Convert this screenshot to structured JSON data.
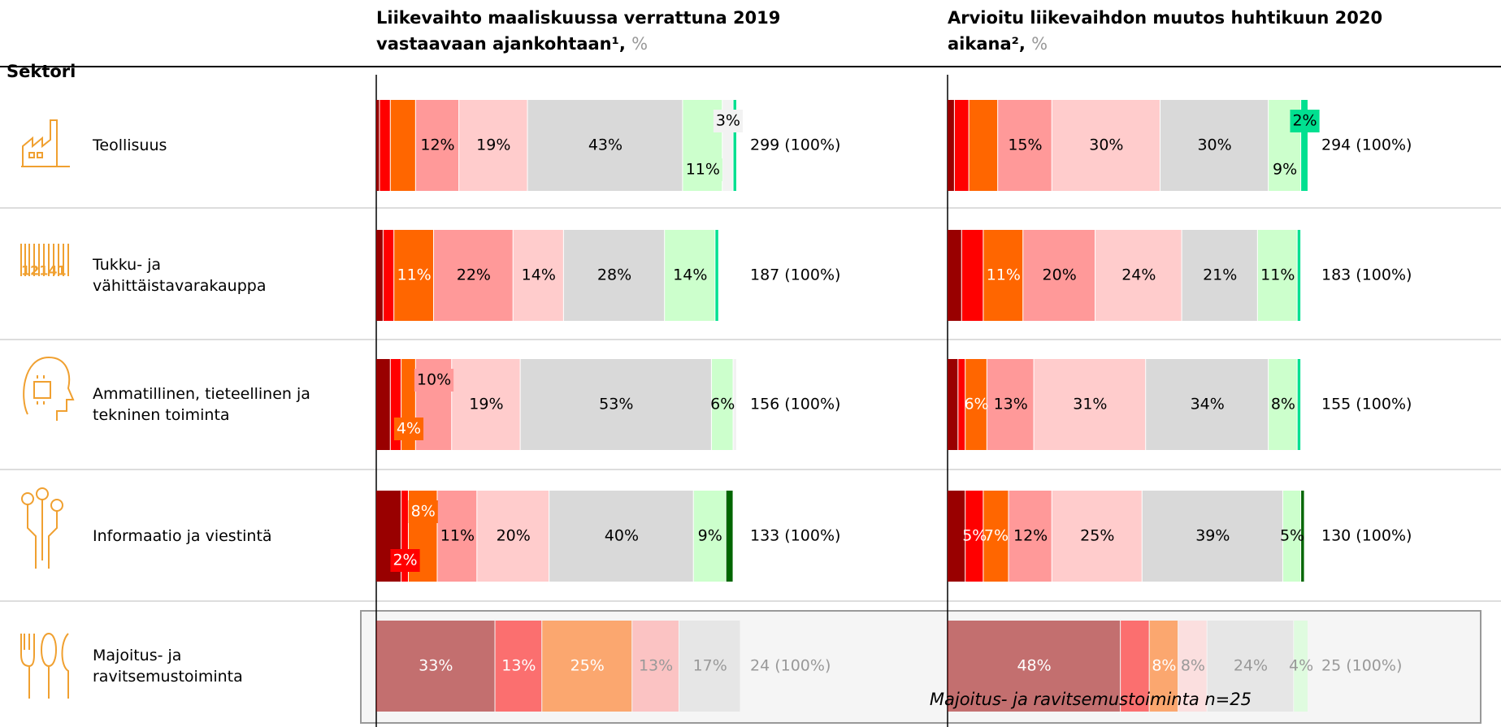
{
  "header": "Sektori",
  "note": "Majoitus- ja ravitsemustoiminta n=25",
  "chart_data": [
    {
      "type": "bar",
      "orientation": "horizontal",
      "stacked": true,
      "title": "Liikevaihto maaliskuussa verrattuna 2019 vastaavaan ajankohtaan¹,",
      "unit": "%",
      "categories": [
        "Teollisuus",
        "Tukku- ja vähittäistavarakauppa",
        "Ammatillinen, tieteellinen ja tekninen toiminta",
        "Informaatio ja viestintä",
        "Majoitus- ja ravitsemustoiminta"
      ],
      "dimmed": [
        false,
        false,
        false,
        false,
        true
      ],
      "xlim": [
        0,
        100
      ],
      "series": [
        {
          "color": "#990000",
          "values": [
            1,
            2,
            4,
            7,
            33
          ],
          "value_labels": [
            null,
            null,
            null,
            null,
            "33%"
          ]
        },
        {
          "color": "#ff0000",
          "values": [
            3,
            3,
            3,
            2,
            13
          ],
          "value_labels": [
            null,
            null,
            null,
            "2%",
            "13%"
          ]
        },
        {
          "color": "#ff6600",
          "values": [
            7,
            11,
            4,
            8,
            25
          ],
          "value_labels": [
            null,
            "11%",
            "4%",
            "8%",
            "25%"
          ]
        },
        {
          "color": "#ff9999",
          "values": [
            12,
            22,
            10,
            11,
            13
          ],
          "value_labels": [
            "12%",
            "22%",
            "10%",
            "11%",
            "13%"
          ]
        },
        {
          "color": "#ffcccc",
          "values": [
            19,
            14,
            19,
            20,
            0
          ],
          "value_labels": [
            "19%",
            "14%",
            "19%",
            "20%",
            null
          ]
        },
        {
          "color": "#d9d9d9",
          "values": [
            43,
            28,
            53,
            40,
            17
          ],
          "value_labels": [
            "43%",
            "28%",
            "53%",
            "40%",
            "17%"
          ]
        },
        {
          "color": "#ccffcc",
          "values": [
            11,
            14,
            6,
            9,
            0
          ],
          "value_labels": [
            "11%",
            "14%",
            "6%",
            "9%",
            null
          ]
        },
        {
          "color": "#f2f2f2",
          "values": [
            3,
            0,
            1,
            0,
            0
          ],
          "value_labels": [
            "3%",
            null,
            null,
            null,
            null
          ]
        },
        {
          "color": "#00e090",
          "values": [
            1,
            1,
            0,
            0,
            0
          ],
          "value_labels": [
            null,
            null,
            null,
            null,
            null
          ]
        },
        {
          "color": "#006600",
          "values": [
            0,
            0,
            0,
            2,
            0
          ],
          "value_labels": [
            null,
            null,
            null,
            null,
            null
          ]
        }
      ],
      "totals": [
        "299 (100%)",
        "187 (100%)",
        "156 (100%)",
        "133 (100%)",
        "24 (100%)"
      ]
    },
    {
      "type": "bar",
      "orientation": "horizontal",
      "stacked": true,
      "title": "Arvioitu liikevaihdon muutos huhtikuun 2020 aikana²,",
      "unit": "%",
      "xlim": [
        0,
        100
      ],
      "series": [
        {
          "color": "#990000",
          "values": [
            2,
            4,
            3,
            5,
            48
          ],
          "value_labels": [
            null,
            null,
            null,
            null,
            "48%"
          ]
        },
        {
          "color": "#ff0000",
          "values": [
            4,
            6,
            2,
            5,
            8
          ],
          "value_labels": [
            null,
            null,
            null,
            "5%",
            null
          ]
        },
        {
          "color": "#ff6600",
          "values": [
            8,
            11,
            6,
            7,
            8
          ],
          "value_labels": [
            null,
            "11%",
            "6%",
            "7%",
            "8%"
          ]
        },
        {
          "color": "#ff9999",
          "values": [
            15,
            20,
            13,
            12,
            0
          ],
          "value_labels": [
            "15%",
            "20%",
            "13%",
            "12%",
            null
          ]
        },
        {
          "color": "#ffcccc",
          "values": [
            30,
            24,
            31,
            25,
            8
          ],
          "value_labels": [
            "30%",
            "24%",
            "31%",
            "25%",
            "8%"
          ]
        },
        {
          "color": "#d9d9d9",
          "values": [
            30,
            21,
            34,
            39,
            24
          ],
          "value_labels": [
            "30%",
            "21%",
            "34%",
            "39%",
            "24%"
          ]
        },
        {
          "color": "#ccffcc",
          "values": [
            9,
            11,
            8,
            5,
            4
          ],
          "value_labels": [
            "9%",
            "11%",
            "8%",
            "5%",
            "4%"
          ]
        },
        {
          "color": "#00e090",
          "values": [
            2,
            1,
            1,
            0,
            0
          ],
          "value_labels": [
            "2%",
            null,
            null,
            null,
            null
          ]
        },
        {
          "color": "#006600",
          "values": [
            0,
            0,
            0,
            1,
            0
          ],
          "value_labels": [
            null,
            null,
            null,
            null,
            null
          ]
        }
      ],
      "totals": [
        "294 (100%)",
        "183 (100%)",
        "155 (100%)",
        "130 (100%)",
        "25 (100%)"
      ]
    }
  ]
}
